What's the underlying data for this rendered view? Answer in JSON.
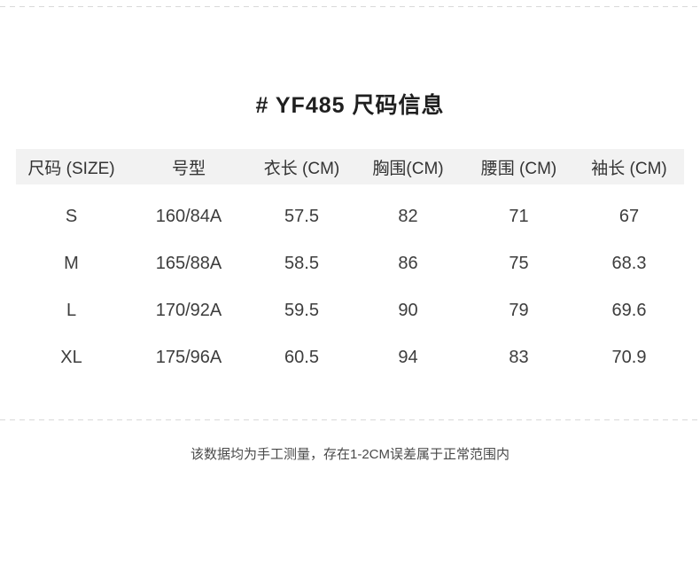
{
  "chart_data": {
    "type": "table",
    "title": "# YF485 尺码信息",
    "columns": [
      "尺码 (SIZE)",
      "号型",
      "衣长 (CM)",
      "胸围(CM)",
      "腰围 (CM)",
      "袖长 (CM)"
    ],
    "rows": [
      [
        "S",
        "160/84A",
        "57.5",
        "82",
        "71",
        "67"
      ],
      [
        "M",
        "165/88A",
        "58.5",
        "86",
        "75",
        "68.3"
      ],
      [
        "L",
        "170/92A",
        "59.5",
        "90",
        "79",
        "69.6"
      ],
      [
        "XL",
        "175/96A",
        "60.5",
        "94",
        "83",
        "70.9"
      ]
    ],
    "note": "该数据均为手工测量，存在1-2CM误差属于正常范围内"
  },
  "colors": {
    "header_row_bg": "#f2f2f2",
    "title_text": "#1f1f1f",
    "body_text": "#3d3d3d",
    "dashed_divider": "#d9d9d9"
  }
}
